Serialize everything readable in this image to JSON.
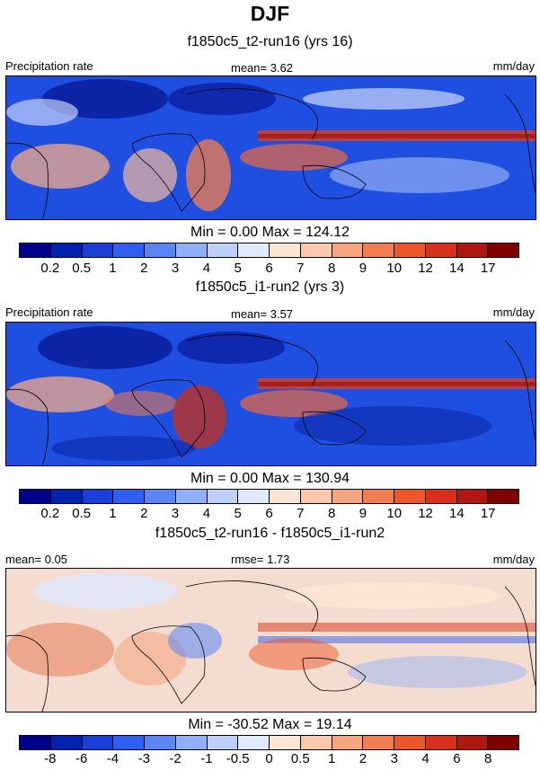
{
  "title": "DJF",
  "colors": {
    "precip_scale": [
      "#00008b",
      "#0022b0",
      "#1a3fd8",
      "#2f5ff0",
      "#5a85f5",
      "#8fb0f7",
      "#bcd0fb",
      "#e0eafd",
      "#fde5d3",
      "#fbc8ab",
      "#f8a57f",
      "#f27d52",
      "#ec5628",
      "#d8301a",
      "#b0180f",
      "#800000"
    ],
    "diff_scale": [
      "#00008b",
      "#0022b0",
      "#1a3fd8",
      "#2f5ff0",
      "#5a85f5",
      "#8fb0f7",
      "#bcd0fb",
      "#e0eafd",
      "#fde5d3",
      "#fbc8ab",
      "#f8a57f",
      "#f27d52",
      "#ec5628",
      "#d8301a",
      "#b0180f",
      "#800000"
    ]
  },
  "panels": [
    {
      "subtitle": "f1850c5_t2-run16 (yrs 16)",
      "left_label": "Precipitation rate",
      "center_label": "mean=   3.62",
      "right_label": "mm/day",
      "minmax": "Min =   0.00 Max = 124.12",
      "ticks": [
        "0.2",
        "0.5",
        "1",
        "2",
        "3",
        "4",
        "5",
        "6",
        "7",
        "8",
        "9",
        "10",
        "12",
        "14",
        "17"
      ]
    },
    {
      "subtitle": "f1850c5_i1-run2 (yrs 3)",
      "left_label": "Precipitation rate",
      "center_label": "mean=   3.57",
      "right_label": "mm/day",
      "minmax": "Min =   0.00 Max = 130.94",
      "ticks": [
        "0.2",
        "0.5",
        "1",
        "2",
        "3",
        "4",
        "5",
        "6",
        "7",
        "8",
        "9",
        "10",
        "12",
        "14",
        "17"
      ]
    },
    {
      "subtitle": "f1850c5_t2-run16 - f1850c5_i1-run2",
      "left_label": "mean=   0.05",
      "center_label": "rmse=   1.73",
      "right_label": "mm/day",
      "minmax": "Min = -30.52 Max =  19.14",
      "ticks": [
        "-8",
        "-6",
        "-4",
        "-3",
        "-2",
        "-1",
        "-0.5",
        "0",
        "0.5",
        "1",
        "2",
        "3",
        "4",
        "6",
        "8"
      ]
    }
  ]
}
